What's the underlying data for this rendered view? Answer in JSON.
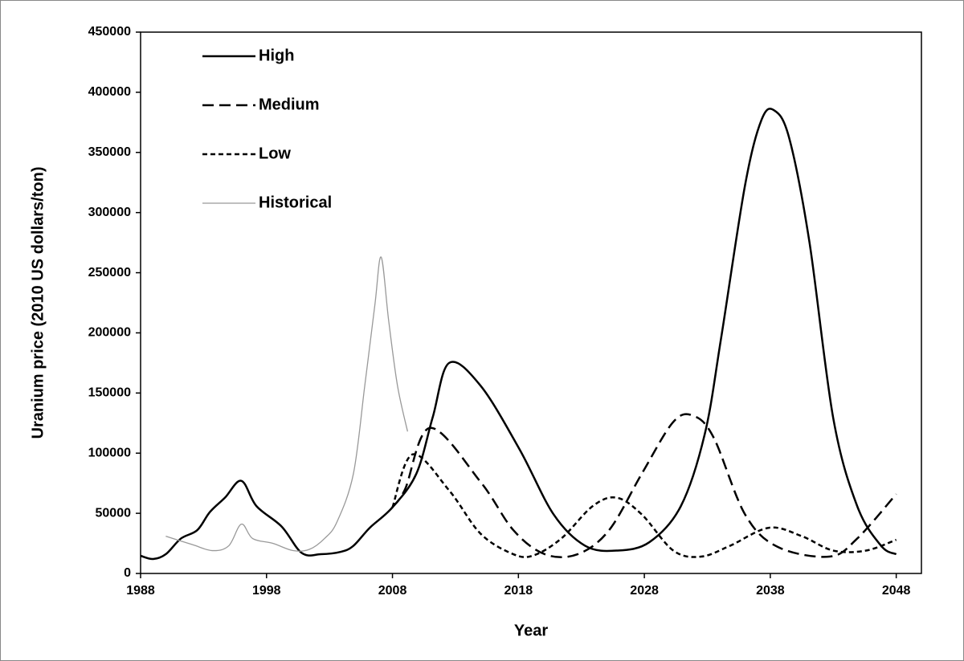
{
  "chart_data": {
    "type": "line",
    "x_label": "Year",
    "y_label": "Uranium price (2010 US dollars/ton)",
    "xlim": [
      1988,
      2050
    ],
    "xticks": [
      1988,
      1998,
      2008,
      2018,
      2028,
      2038,
      2048
    ],
    "ylim": [
      0,
      450000
    ],
    "yticks": [
      0,
      50000,
      100000,
      150000,
      200000,
      250000,
      300000,
      350000,
      400000,
      450000
    ],
    "grid": false,
    "legend": "upper-left",
    "series": [
      {
        "name": "High",
        "color": "#000000",
        "line_style": "solid",
        "x": [
          1988,
          1989,
          1990,
          1991.2,
          1992.5,
          1993.5,
          1994.7,
          1996,
          1997.2,
          1999.2,
          2000.8,
          2002.3,
          2003.9,
          2004.9,
          2006.2,
          2008,
          2009.9,
          2011.2,
          2012.5,
          2015,
          2018.1,
          2020.8,
          2023.3,
          2025.8,
          2028.4,
          2030.9,
          2032.8,
          2034.1,
          2036,
          2037.3,
          2038.3,
          2039.5,
          2041.1,
          2043,
          2044.9,
          2046.8,
          2048
        ],
        "values": [
          14700,
          12000,
          16000,
          29000,
          36000,
          51000,
          63000,
          77000,
          56000,
          39000,
          17000,
          16000,
          18000,
          23000,
          38000,
          55000,
          83000,
          130000,
          175000,
          156000,
          103000,
          49000,
          23000,
          19000,
          26000,
          56000,
          116000,
          196000,
          323000,
          377000,
          385000,
          362000,
          276000,
          129000,
          56000,
          23000,
          16000
        ]
      },
      {
        "name": "Medium",
        "color": "#000000",
        "line_style": "long-dash",
        "x": [
          2008,
          2009,
          2011,
          2015,
          2017.6,
          2020.1,
          2022.7,
          2025.2,
          2027.8,
          2030.3,
          2031.9,
          2033.5,
          2036,
          2038.6,
          2042.7,
          2044.9,
          2048
        ],
        "values": [
          55000,
          70000,
          121000,
          76000,
          36000,
          16000,
          16000,
          36000,
          83000,
          126000,
          131000,
          113000,
          49000,
          22000,
          14000,
          29000,
          66000
        ]
      },
      {
        "name": "Low",
        "color": "#000000",
        "line_style": "short-dash",
        "x": [
          2008,
          2009.6,
          2012.5,
          2015,
          2017.6,
          2019.2,
          2021.4,
          2023.9,
          2025.8,
          2027.8,
          2030.3,
          2032.5,
          2034.8,
          2037.9,
          2040.5,
          2043,
          2045.6,
          2048
        ],
        "values": [
          55000,
          99000,
          69000,
          33000,
          16000,
          15000,
          29000,
          56000,
          63000,
          49000,
          19000,
          14000,
          23000,
          38000,
          31000,
          19000,
          19000,
          28000
        ]
      },
      {
        "name": "Historical",
        "color": "#999999",
        "line_style": "thin",
        "x": [
          1990,
          1992.1,
          1993.7,
          1995,
          1996,
          1996.9,
          1998.5,
          2000.1,
          2001.4,
          2002.6,
          2003.6,
          2004.9,
          2005.8,
          2006.6,
          2007.1,
          2007.7,
          2008.4,
          2009.2
        ],
        "values": [
          31000,
          24000,
          19000,
          23000,
          41000,
          29000,
          25000,
          19000,
          20000,
          29000,
          43000,
          83000,
          156000,
          223000,
          263000,
          210000,
          156000,
          118000
        ]
      }
    ]
  }
}
